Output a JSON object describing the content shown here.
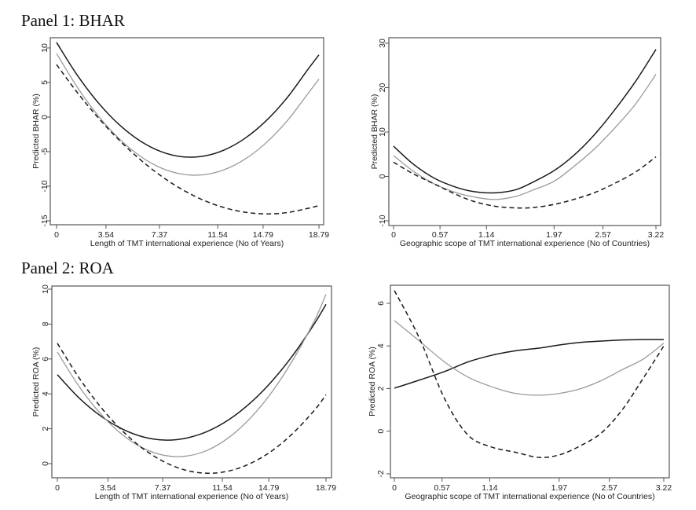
{
  "panels": [
    {
      "title": "Panel 1: BHAR"
    },
    {
      "title": "Panel 2: ROA"
    }
  ],
  "colors": {
    "black": "#1a1a1a",
    "gray": "#9a9a9a",
    "dashed": "#1a1a1a",
    "frame": "#555555"
  },
  "chart_data": [
    {
      "type": "line",
      "panel": "Panel 1: BHAR",
      "title": "",
      "xlabel": "Length of TMT international experience (No of Years)",
      "ylabel": "Predicted BHAR (%)",
      "xlim": [
        0,
        18.79
      ],
      "ylim": [
        -15,
        10
      ],
      "xticks": [
        0,
        3.54,
        7.37,
        11.54,
        14.79,
        18.79
      ],
      "xtick_labels": [
        "0",
        "3.54",
        "7.37",
        "11.54",
        "14.79",
        "18.79"
      ],
      "yticks": [
        -15,
        -10,
        -5,
        0,
        5,
        10
      ],
      "ytick_labels": [
        "-15",
        "-10",
        "-5",
        "0",
        "5",
        "10"
      ],
      "grid": false,
      "x": [
        0,
        1.5,
        3,
        4.5,
        6,
        7.5,
        9,
        10.5,
        12,
        13.5,
        15,
        16.5,
        18,
        18.79
      ],
      "series": [
        {
          "name": "solid-black",
          "style": "solid",
          "color": "black",
          "values": [
            10.79,
            6.01,
            2.04,
            -1.12,
            -3.47,
            -5.01,
            -5.74,
            -5.65,
            -4.76,
            -3.06,
            -0.55,
            2.77,
            6.9,
            9.0
          ]
        },
        {
          "name": "solid-gray",
          "style": "solid",
          "color": "gray",
          "values": [
            9.2,
            4.27,
            0.15,
            -3.16,
            -5.67,
            -7.37,
            -8.25,
            -8.34,
            -7.61,
            -6.07,
            -3.73,
            -0.58,
            3.38,
            5.5
          ]
        },
        {
          "name": "dashed-black",
          "style": "dashed",
          "color": "dashed",
          "values": [
            7.59,
            3.52,
            -0.14,
            -3.36,
            -6.16,
            -8.53,
            -10.48,
            -12.0,
            -13.09,
            -13.76,
            -14.0,
            -13.81,
            -13.2,
            -12.8
          ]
        }
      ]
    },
    {
      "type": "line",
      "panel": "Panel 1: BHAR",
      "title": "",
      "xlabel": "Geographic scope of TMT international experience (No of Countries)",
      "ylabel": "Predicted BHAR (%)",
      "xlim": [
        0,
        3.22
      ],
      "ylim": [
        -10,
        30
      ],
      "xticks": [
        0,
        0.57,
        1.14,
        1.97,
        2.57,
        3.22
      ],
      "xtick_labels": [
        "0",
        "0.57",
        "1.14",
        "1.97",
        "2.57",
        "3.22"
      ],
      "yticks": [
        -10,
        0,
        10,
        20,
        30
      ],
      "ytick_labels": [
        "-10",
        "0",
        "10",
        "20",
        "30"
      ],
      "grid": false,
      "x": [
        0,
        0.24,
        0.5,
        0.76,
        0.98,
        1.24,
        1.5,
        1.72,
        1.97,
        2.21,
        2.46,
        2.71,
        2.97,
        3.22
      ],
      "series": [
        {
          "name": "solid-black",
          "style": "solid",
          "color": "black",
          "values": [
            6.8,
            2.8,
            -0.4,
            -2.4,
            -3.4,
            -3.7,
            -3.0,
            -1.2,
            1.3,
            4.7,
            9.3,
            14.9,
            21.4,
            28.6
          ]
        },
        {
          "name": "solid-gray",
          "style": "solid",
          "color": "gray",
          "values": [
            4.7,
            1.2,
            -1.7,
            -3.6,
            -4.6,
            -5.2,
            -4.5,
            -3.0,
            -1.1,
            2.2,
            6.1,
            10.8,
            16.3,
            23.0
          ]
        },
        {
          "name": "dashed-black",
          "style": "dashed",
          "color": "dashed",
          "values": [
            3.2,
            0.6,
            -1.7,
            -4.0,
            -5.6,
            -6.7,
            -7.1,
            -7.0,
            -6.3,
            -5.2,
            -3.7,
            -1.6,
            1.0,
            4.4
          ]
        }
      ]
    },
    {
      "type": "line",
      "panel": "Panel 2: ROA",
      "title": "",
      "xlabel": "Length of TMT international experience (No of Years)",
      "ylabel": "Predicted ROA (%)",
      "xlim": [
        0,
        18.79
      ],
      "ylim": [
        -0.8,
        10
      ],
      "xticks": [
        0,
        3.54,
        7.37,
        11.54,
        14.79,
        18.79
      ],
      "xtick_labels": [
        "0",
        "3.54",
        "7.37",
        "11.54",
        "14.79",
        "18.79"
      ],
      "yticks": [
        0,
        2,
        4,
        6,
        8,
        10
      ],
      "ytick_labels": [
        "0",
        "2",
        "4",
        "6",
        "8",
        "10"
      ],
      "grid": false,
      "x": [
        0,
        1.5,
        3,
        4.5,
        6,
        7.5,
        9,
        10.5,
        12,
        13.5,
        15,
        16.5,
        18,
        18.79
      ],
      "series": [
        {
          "name": "solid-black",
          "style": "solid",
          "color": "black",
          "values": [
            5.1,
            3.78,
            2.75,
            2.0,
            1.53,
            1.35,
            1.46,
            1.85,
            2.52,
            3.48,
            4.72,
            6.24,
            8.05,
            9.13
          ]
        },
        {
          "name": "solid-gray",
          "style": "solid",
          "color": "gray",
          "values": [
            6.4,
            4.45,
            2.88,
            1.69,
            0.89,
            0.47,
            0.43,
            0.77,
            1.5,
            2.61,
            4.1,
            5.98,
            8.23,
            9.7
          ]
        },
        {
          "name": "dashed-black",
          "style": "dashed",
          "color": "dashed",
          "values": [
            6.9,
            4.94,
            3.28,
            1.92,
            0.85,
            0.09,
            -0.38,
            -0.55,
            -0.42,
            0.01,
            0.73,
            1.76,
            3.08,
            3.95
          ]
        }
      ]
    },
    {
      "type": "line",
      "panel": "Panel 2: ROA",
      "title": "",
      "xlabel": "Geographic scope of TMT international experience (No of Countries)",
      "ylabel": "Predicted ROA (%)",
      "xlim": [
        0,
        3.22
      ],
      "ylim": [
        -2.2,
        6.8
      ],
      "xticks": [
        0,
        0.57,
        1.14,
        1.97,
        2.57,
        3.22
      ],
      "xtick_labels": [
        "0",
        "0.57",
        "1.14",
        "1.97",
        "2.57",
        "3.22"
      ],
      "yticks": [
        -2,
        0,
        2,
        4,
        6
      ],
      "ytick_labels": [
        "-2",
        "0",
        "2",
        "4",
        "6"
      ],
      "grid": false,
      "x": [
        0,
        0.3,
        0.6,
        0.88,
        1.16,
        1.44,
        1.73,
        1.98,
        2.23,
        2.48,
        2.73,
        2.98,
        3.22
      ],
      "series": [
        {
          "name": "solid-black",
          "style": "solid",
          "color": "black",
          "values": [
            2.02,
            2.4,
            2.8,
            3.25,
            3.56,
            3.77,
            3.9,
            4.05,
            4.17,
            4.23,
            4.28,
            4.3,
            4.3
          ]
        },
        {
          "name": "solid-gray",
          "style": "solid",
          "color": "gray",
          "values": [
            5.19,
            4.23,
            3.25,
            2.54,
            2.09,
            1.78,
            1.69,
            1.78,
            2.0,
            2.39,
            2.9,
            3.4,
            4.13
          ]
        },
        {
          "name": "dashed-black",
          "style": "dashed",
          "color": "dashed",
          "values": [
            6.6,
            4.36,
            1.53,
            -0.18,
            -0.74,
            -0.98,
            -1.23,
            -1.1,
            -0.67,
            -0.06,
            1.04,
            2.52,
            4.0
          ]
        }
      ]
    }
  ]
}
